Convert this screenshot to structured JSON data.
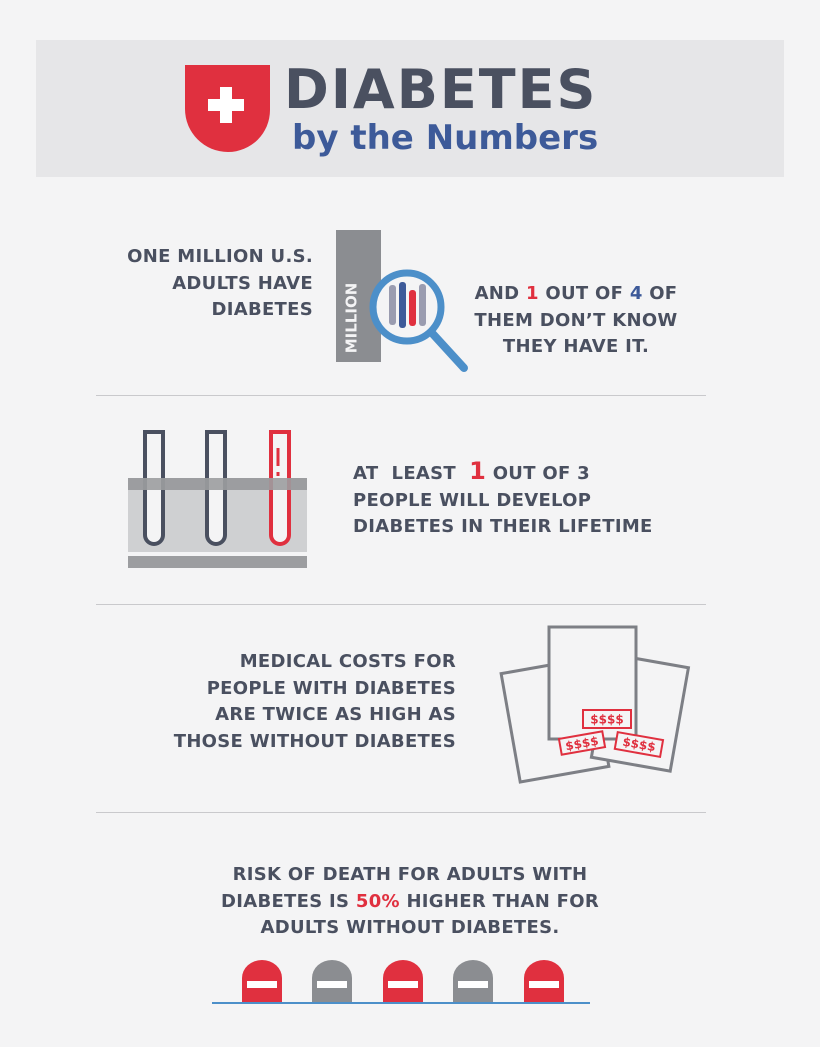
{
  "header": {
    "title": "DIABETES",
    "subtitle": "by the Numbers"
  },
  "sections": [
    {
      "icon_text": "MILLION",
      "lead": {
        "lines": [
          [
            {
              "text": "ONE MILLION U.S."
            }
          ],
          [
            {
              "text": "ADULTS HAVE"
            }
          ],
          [
            {
              "text": "DIABETES"
            }
          ]
        ]
      },
      "detail": {
        "lines": [
          [
            {
              "text": "AND "
            },
            {
              "text": "1",
              "color": "#e0303f"
            },
            {
              "text": " OUT OF "
            },
            {
              "text": "4",
              "color": "#3d5a99"
            },
            {
              "text": " OF"
            }
          ],
          [
            {
              "text": "THEM DON’T KNOW"
            }
          ],
          [
            {
              "text": "THEY HAVE IT."
            }
          ]
        ]
      }
    },
    {
      "lead": {
        "lines": [
          [
            {
              "text": "AT  LEAST  "
            },
            {
              "text": "1",
              "color": "#e0303f"
            },
            {
              "text": " OUT OF 3"
            }
          ],
          [
            {
              "text": "PEOPLE WILL DEVELOP"
            }
          ],
          [
            {
              "text": "DIABETES IN THEIR LIFETIME"
            }
          ]
        ]
      }
    },
    {
      "icon_text": "$$$$",
      "lead": {
        "lines": [
          [
            {
              "text": "MEDICAL COSTS FOR"
            }
          ],
          [
            {
              "text": "PEOPLE WITH DIABETES"
            }
          ],
          [
            {
              "text": "ARE TWICE AS HIGH AS"
            }
          ],
          [
            {
              "text": "THOSE WITHOUT DIABETES"
            }
          ]
        ]
      }
    },
    {
      "lead": {
        "lines": [
          [
            {
              "text": "RISK OF DEATH FOR ADULTS WITH"
            }
          ],
          [
            {
              "text": "DIABETES IS "
            },
            {
              "text": "50%",
              "color": "#e0303f"
            },
            {
              "text": " HIGHER THAN FOR"
            }
          ],
          [
            {
              "text": "ADULTS WITHOUT DIABETES."
            }
          ]
        ]
      }
    }
  ]
}
